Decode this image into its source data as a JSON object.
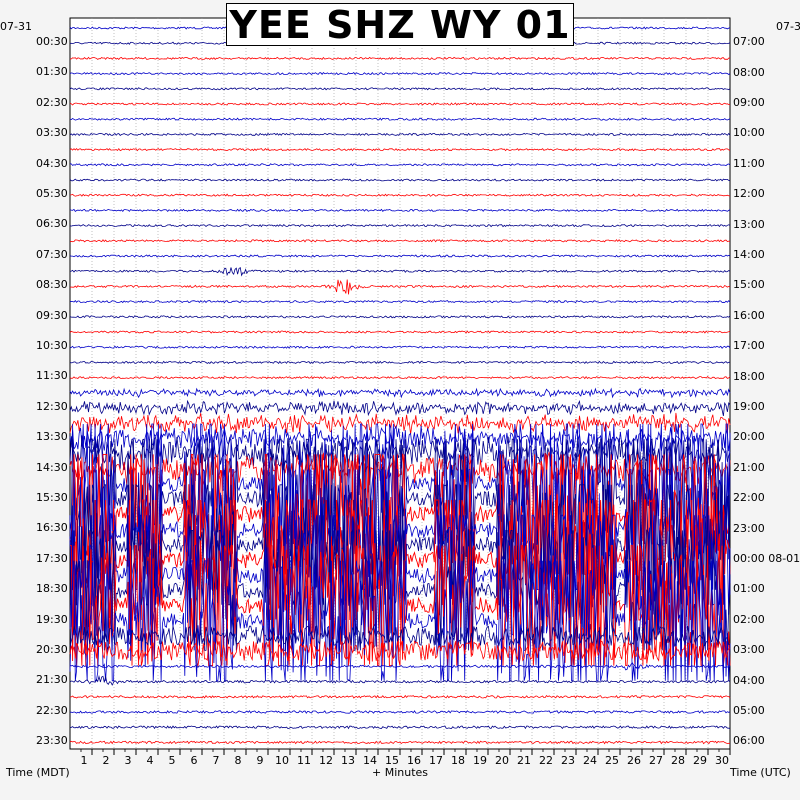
{
  "title": "YEE SHZ WY 01",
  "left_date": "07-31",
  "right_date": "07-3",
  "right_date_change_label": "00:00 08-01",
  "xlabel": "+ Minutes",
  "left_axis_label": "Time (MDT)",
  "right_axis_label": "Time (UTC)",
  "colors": {
    "trace_a": "#0000c8",
    "trace_b": "#000088",
    "trace_c": "#ff0000",
    "background": "#ffffff",
    "grid": "#9a9a9a"
  },
  "chart_data": {
    "type": "helicorder",
    "xlim": [
      0,
      30
    ],
    "x_ticks": [
      "1",
      "2",
      "3",
      "4",
      "5",
      "6",
      "7",
      "8",
      "9",
      "10",
      "11",
      "12",
      "13",
      "14",
      "15",
      "16",
      "17",
      "18",
      "19",
      "20",
      "21",
      "22",
      "23",
      "24",
      "25",
      "26",
      "27",
      "28",
      "29",
      "30"
    ],
    "row_minutes": 30,
    "num_rows": 48,
    "left_time_labels": [
      "00:30",
      "01:30",
      "02:30",
      "03:30",
      "04:30",
      "05:30",
      "06:30",
      "07:30",
      "08:30",
      "09:30",
      "10:30",
      "11:30",
      "12:30",
      "13:30",
      "14:30",
      "15:30",
      "16:30",
      "17:30",
      "18:30",
      "19:30",
      "20:30",
      "21:30",
      "22:30",
      "23:30"
    ],
    "right_time_labels": [
      "07:00",
      "08:00",
      "09:00",
      "10:00",
      "11:00",
      "12:00",
      "13:00",
      "14:00",
      "15:00",
      "16:00",
      "17:00",
      "18:00",
      "19:00",
      "20:00",
      "21:00",
      "22:00",
      "23:00",
      "00:00 08-01",
      "01:00",
      "02:00",
      "03:00",
      "04:00",
      "05:00",
      "06:00"
    ],
    "trace_color_cycle": [
      "#0000c8",
      "#000088",
      "#ff0000"
    ],
    "activity_profile": "quiet traces 00:00–12:00 MDT; increasing noise 12:00–15:00; strong clipped signal with red traces 15:00–20:00 MDT; quiet again after 20:00",
    "events": [
      {
        "time_mdt": "08:00",
        "minute": 7.5,
        "amplitude": "medium"
      },
      {
        "time_mdt": "08:30",
        "minute": 12.5,
        "amplitude": "large"
      },
      {
        "time_mdt": "21:30",
        "minute": 1.5,
        "amplitude": "medium"
      },
      {
        "time_mdt": "21:00",
        "minute": 25.5,
        "amplitude": "small"
      }
    ]
  }
}
